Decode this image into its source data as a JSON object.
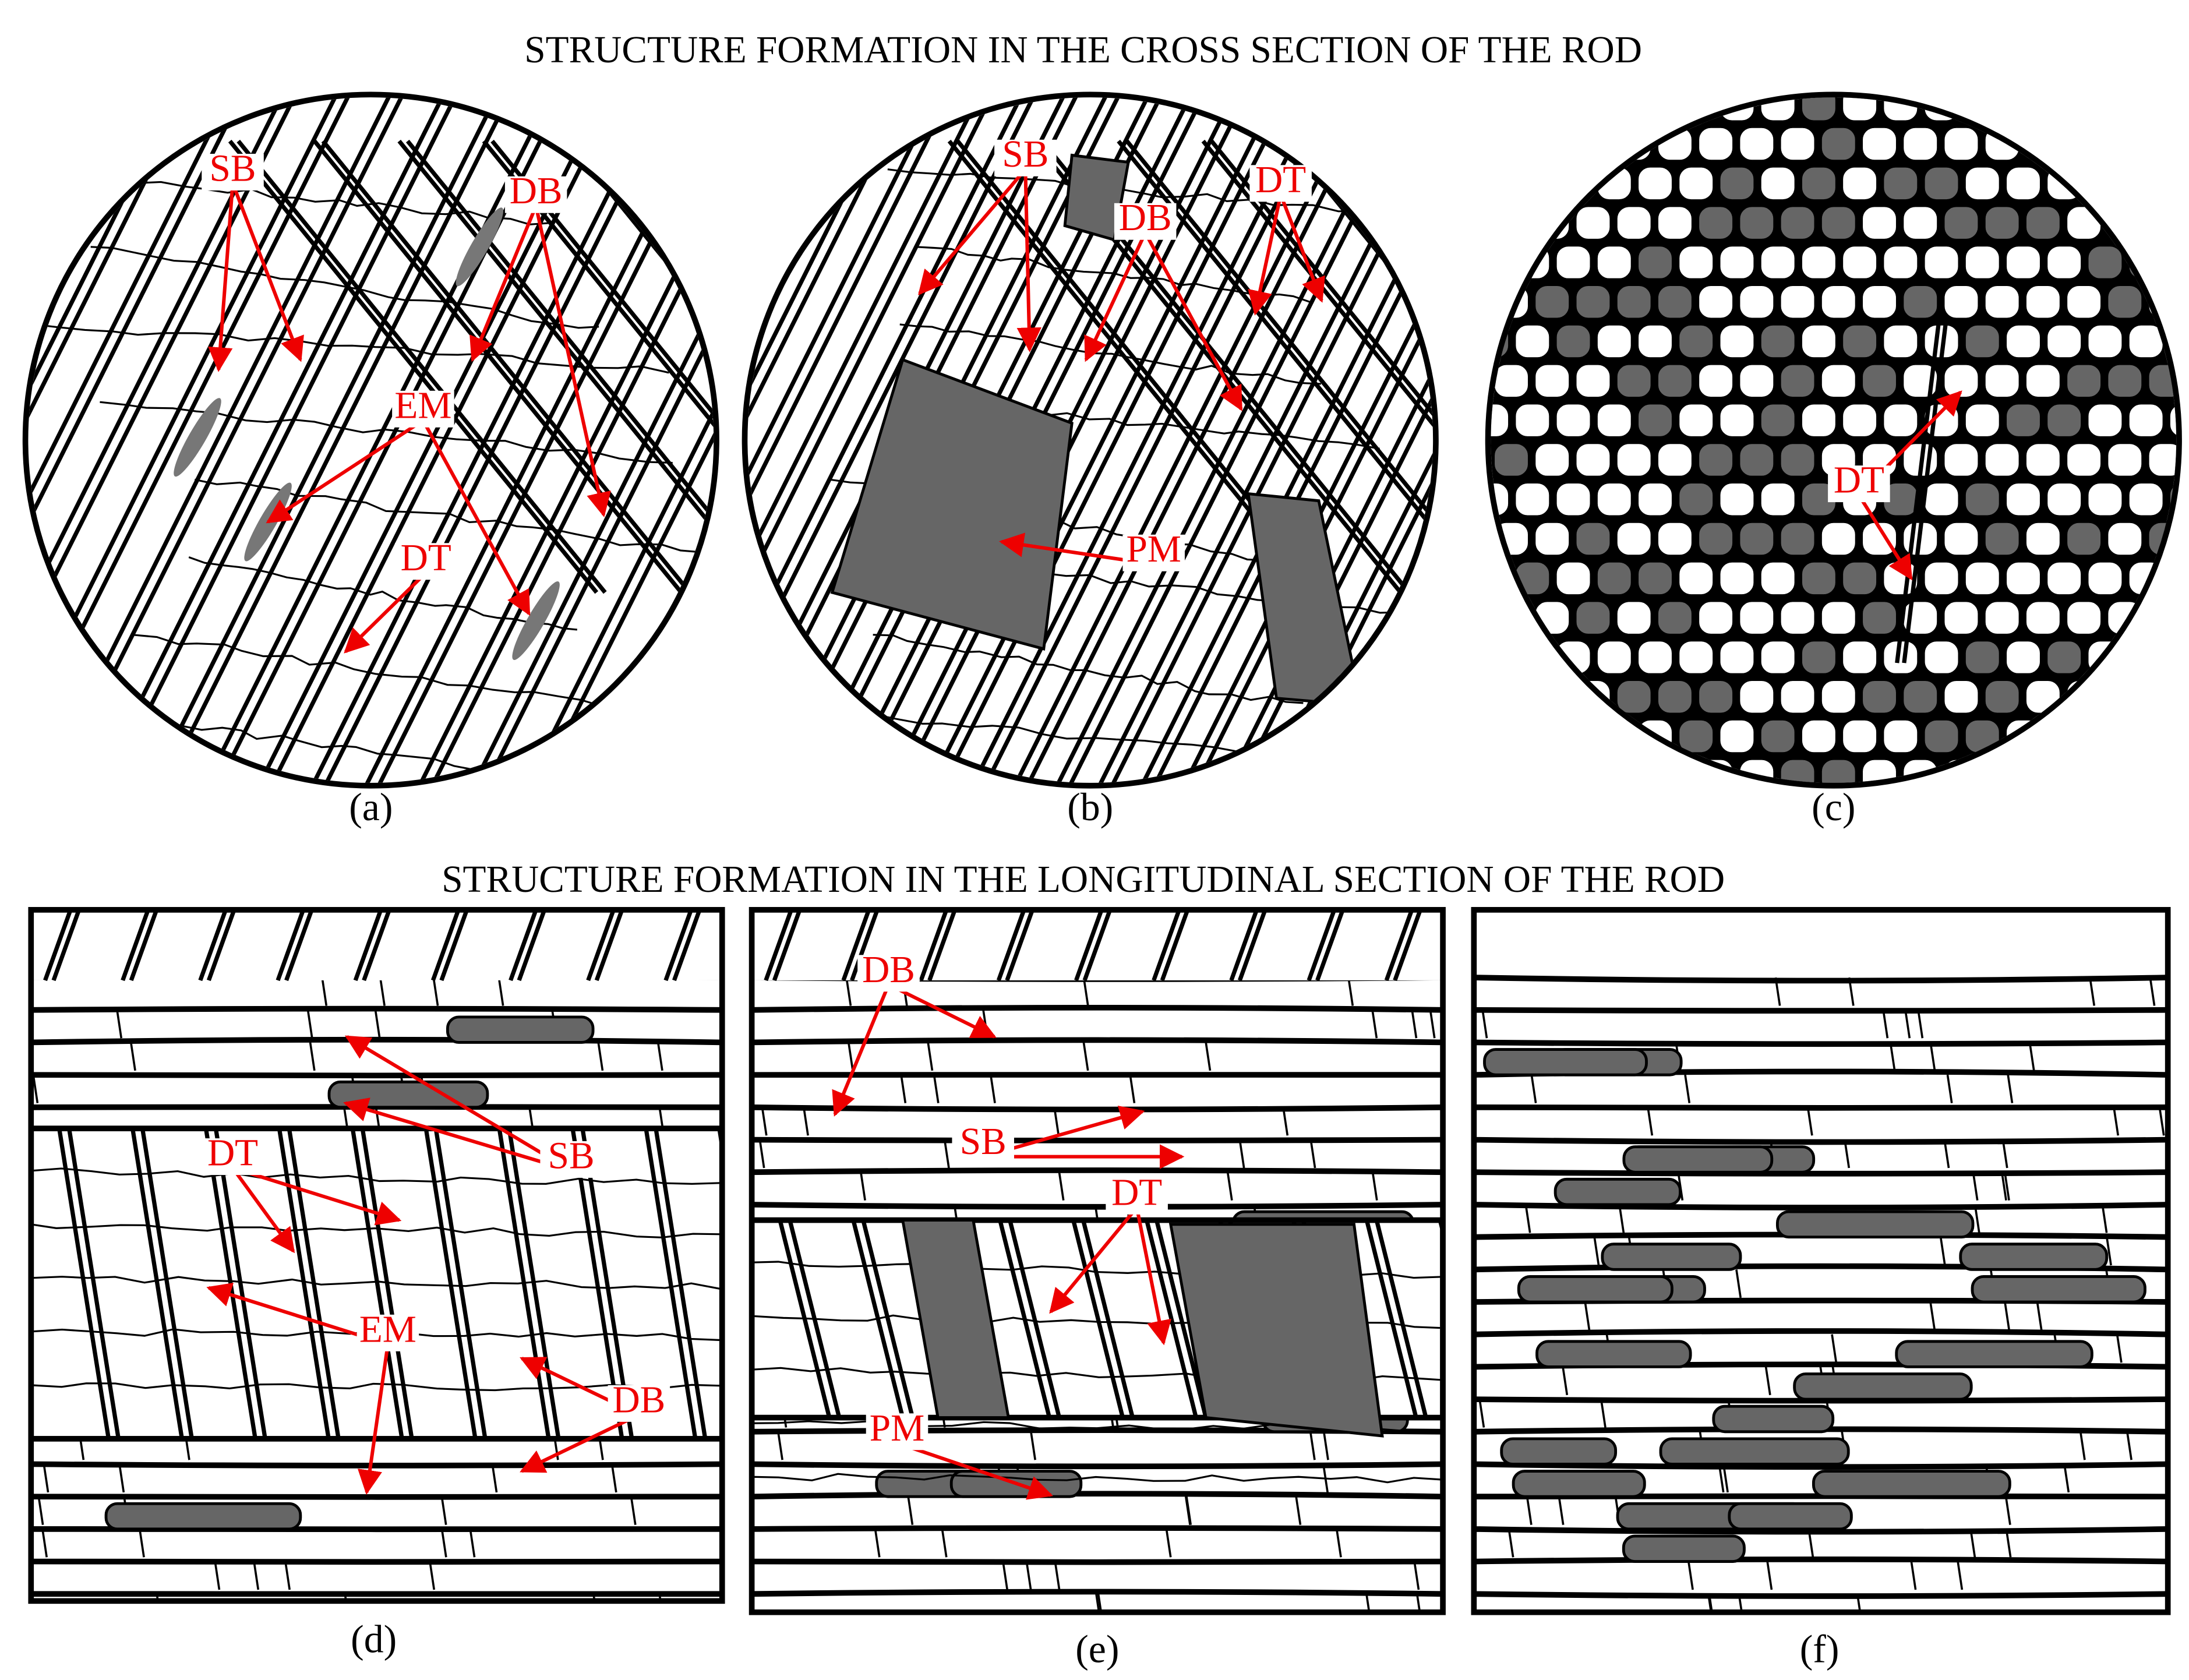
{
  "cross_section_title": "STRUCTURE FORMATION IN THE CROSS SECTION OF THE ROD",
  "longitudinal_title": "STRUCTURE FORMATION IN THE LONGITUDINAL SECTION OF THE ROD",
  "panels": [
    {
      "caption": "(a)",
      "labels": [
        "SB",
        "DB",
        "EM",
        "DT"
      ]
    },
    {
      "caption": "(b)",
      "labels": [
        "SB",
        "DB",
        "DT",
        "PM"
      ]
    },
    {
      "caption": "(c)",
      "labels": [
        "DT"
      ]
    },
    {
      "caption": "(d)",
      "labels": [
        "DT",
        "EM",
        "DB",
        "SB"
      ]
    },
    {
      "caption": "(e)",
      "labels": [
        "DB",
        "SB",
        "DT",
        "PM"
      ]
    },
    {
      "caption": "(f)",
      "labels": []
    }
  ]
}
